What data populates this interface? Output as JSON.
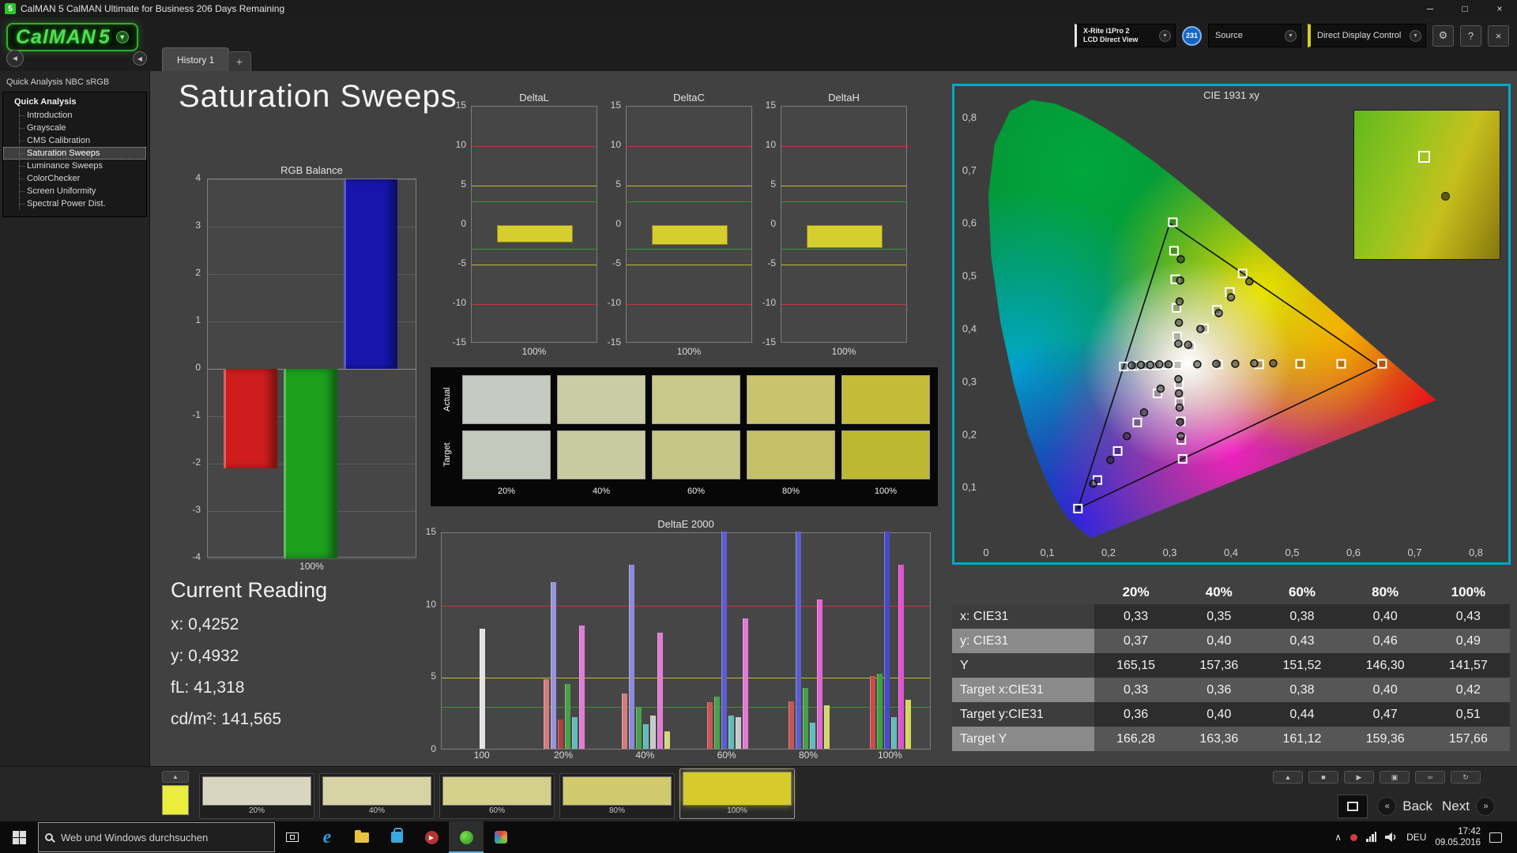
{
  "titlebar": {
    "icon": "5",
    "title": "CalMAN 5 CalMAN Ultimate for Business 206 Days Remaining"
  },
  "logo": {
    "brand": "CalMAN",
    "version": "5"
  },
  "tabs": {
    "active": "History 1",
    "add": "+"
  },
  "topbar": {
    "meter_line1": "X-Rite i1Pro 2",
    "meter_line2": "LCD Direct View",
    "badge": "231",
    "source_label": "Source",
    "display_control_label": "Direct Display Control"
  },
  "sidebar": {
    "header": "Quick Analysis NBC sRGB",
    "root": "Quick Analysis",
    "items": [
      "Introduction",
      "Grayscale",
      "CMS Calibration",
      "Saturation Sweeps",
      "Luminance Sweeps",
      "ColorChecker",
      "Screen Uniformity",
      "Spectral Power Dist."
    ],
    "selected_index": 3
  },
  "main": {
    "title": "Saturation Sweeps"
  },
  "rgb_balance": {
    "title": "RGB Balance",
    "yticks": [
      4,
      3,
      2,
      1,
      0,
      -1,
      -2,
      -3,
      -4
    ],
    "ymin": -4,
    "ymax": 4,
    "xlabel": "100%",
    "bars": [
      {
        "name": "red",
        "color": "#cf1d1d",
        "value": -2.1
      },
      {
        "name": "green",
        "color": "#1da11d",
        "value": -4
      },
      {
        "name": "blue",
        "color": "#1616ad",
        "value": 4
      }
    ]
  },
  "delta_charts": {
    "yticks": [
      15,
      10,
      5,
      0,
      -5,
      -10,
      -15
    ],
    "ymin": -15,
    "ymax": 15,
    "xlabel": "100%",
    "limits": {
      "red": 10,
      "yellow": 5,
      "green": 3
    },
    "charts": [
      {
        "title": "DeltaL",
        "value": -2.2
      },
      {
        "title": "DeltaC",
        "value": -2.5
      },
      {
        "title": "DeltaH",
        "value": -2.9
      }
    ]
  },
  "swatches": {
    "row_labels": [
      "Actual",
      "Target"
    ],
    "col_labels": [
      "20%",
      "40%",
      "60%",
      "80%",
      "100%"
    ],
    "actual": [
      "#c5cbc0",
      "#c9cda3",
      "#c9c98b",
      "#c8c46d",
      "#c2bc3a"
    ],
    "target": [
      "#c3c9bd",
      "#c7cb9f",
      "#c6c687",
      "#c4c068",
      "#bcb830"
    ]
  },
  "deltae": {
    "title": "DeltaE 2000",
    "yticks": [
      15,
      10,
      5,
      0
    ],
    "ymax": 15,
    "limits": {
      "red": 10,
      "yellow": 5,
      "green": 3
    },
    "categories": [
      "100",
      "20%",
      "40%",
      "60%",
      "80%",
      "100%"
    ],
    "groups": [
      [
        {
          "color": "#e3e3e3",
          "value": 8.3
        }
      ],
      [
        {
          "color": "#d47c7c",
          "value": 4.8
        },
        {
          "color": "#9894dc",
          "value": 11.5
        },
        {
          "color": "#b04040",
          "value": 2.0
        },
        {
          "color": "#49a049",
          "value": 4.5
        },
        {
          "color": "#62bcbc",
          "value": 2.2
        },
        {
          "color": "#e07cd4",
          "value": 8.5
        }
      ],
      [
        {
          "color": "#d47c7c",
          "value": 3.8
        },
        {
          "color": "#8e8ada",
          "value": 12.7
        },
        {
          "color": "#49a049",
          "value": 2.9
        },
        {
          "color": "#62bcbc",
          "value": 1.7
        },
        {
          "color": "#c9c9c9",
          "value": 2.3
        },
        {
          "color": "#e07cd4",
          "value": 8.0
        },
        {
          "color": "#d6d67a",
          "value": 1.2
        }
      ],
      [
        {
          "color": "#c95555",
          "value": 3.2
        },
        {
          "color": "#49a049",
          "value": 3.6
        },
        {
          "color": "#5d5dd0",
          "value": 15
        },
        {
          "color": "#62bcbc",
          "value": 2.3
        },
        {
          "color": "#c9c9c9",
          "value": 2.2
        },
        {
          "color": "#e07cd4",
          "value": 9.0
        }
      ],
      [
        {
          "color": "#c95555",
          "value": 3.3
        },
        {
          "color": "#5d5dd0",
          "value": 15
        },
        {
          "color": "#49a049",
          "value": 4.2
        },
        {
          "color": "#62bcbc",
          "value": 1.8
        },
        {
          "color": "#e066d4",
          "value": 10.3
        },
        {
          "color": "#d6d66a",
          "value": 3.0
        }
      ],
      [
        {
          "color": "#c94b4b",
          "value": 5.0
        },
        {
          "color": "#3da03d",
          "value": 5.2
        },
        {
          "color": "#4949c8",
          "value": 15
        },
        {
          "color": "#62bcbc",
          "value": 2.2
        },
        {
          "color": "#e052d0",
          "value": 12.7
        },
        {
          "color": "#d6d65a",
          "value": 3.4
        }
      ]
    ]
  },
  "cie": {
    "title": "CIE 1931 xy",
    "xtick_labels": [
      "0",
      "0,1",
      "0,2",
      "0,3",
      "0,4",
      "0,5",
      "0,6",
      "0,7",
      "0,8"
    ],
    "ytick_labels": [
      "0,1",
      "0,2",
      "0,3",
      "0,4",
      "0,5",
      "0,6",
      "0,7",
      "0,8"
    ],
    "triangle": [
      [
        0.64,
        0.33
      ],
      [
        0.3,
        0.6
      ],
      [
        0.15,
        0.06
      ]
    ],
    "targets": [
      [
        0.313,
        0.332
      ],
      [
        0.379,
        0.333
      ],
      [
        0.446,
        0.333
      ],
      [
        0.513,
        0.334
      ],
      [
        0.58,
        0.334
      ],
      [
        0.647,
        0.334
      ],
      [
        0.312,
        0.386
      ],
      [
        0.311,
        0.44
      ],
      [
        0.309,
        0.494
      ],
      [
        0.307,
        0.548
      ],
      [
        0.305,
        0.602
      ],
      [
        0.28,
        0.278
      ],
      [
        0.247,
        0.223
      ],
      [
        0.215,
        0.169
      ],
      [
        0.182,
        0.114
      ],
      [
        0.15,
        0.06
      ],
      [
        0.295,
        0.332
      ],
      [
        0.277,
        0.331
      ],
      [
        0.26,
        0.331
      ],
      [
        0.242,
        0.33
      ],
      [
        0.225,
        0.329
      ],
      [
        0.315,
        0.296
      ],
      [
        0.316,
        0.261
      ],
      [
        0.318,
        0.225
      ],
      [
        0.319,
        0.19
      ],
      [
        0.321,
        0.154
      ],
      [
        0.334,
        0.367
      ],
      [
        0.356,
        0.401
      ],
      [
        0.377,
        0.436
      ],
      [
        0.398,
        0.47
      ],
      [
        0.419,
        0.505
      ]
    ],
    "measurements": [
      [
        0.345,
        0.333
      ],
      [
        0.376,
        0.334
      ],
      [
        0.407,
        0.334
      ],
      [
        0.438,
        0.335
      ],
      [
        0.469,
        0.335
      ],
      [
        0.314,
        0.372
      ],
      [
        0.315,
        0.412
      ],
      [
        0.316,
        0.452
      ],
      [
        0.317,
        0.492
      ],
      [
        0.318,
        0.532
      ],
      [
        0.285,
        0.287
      ],
      [
        0.258,
        0.242
      ],
      [
        0.23,
        0.197
      ],
      [
        0.203,
        0.152
      ],
      [
        0.175,
        0.107
      ],
      [
        0.298,
        0.333
      ],
      [
        0.283,
        0.333
      ],
      [
        0.268,
        0.332
      ],
      [
        0.253,
        0.332
      ],
      [
        0.238,
        0.331
      ],
      [
        0.314,
        0.305
      ],
      [
        0.315,
        0.278
      ],
      [
        0.316,
        0.251
      ],
      [
        0.317,
        0.224
      ],
      [
        0.318,
        0.197
      ],
      [
        0.33,
        0.37
      ],
      [
        0.35,
        0.4
      ],
      [
        0.38,
        0.43
      ],
      [
        0.4,
        0.46
      ],
      [
        0.43,
        0.49
      ]
    ],
    "inset": {
      "square": [
        0.44,
        0.27
      ],
      "dot": [
        0.6,
        0.55
      ]
    }
  },
  "current_reading": {
    "title": "Current Reading",
    "lines": [
      "x: 0,4252",
      "y: 0,4932",
      "fL: 41,318",
      "cd/m²: 141,565"
    ]
  },
  "table": {
    "col_headers": [
      "20%",
      "40%",
      "60%",
      "80%",
      "100%"
    ],
    "rows": [
      {
        "label": "x: CIE31",
        "values": [
          "0,33",
          "0,35",
          "0,38",
          "0,40",
          "0,43"
        ]
      },
      {
        "label": "y: CIE31",
        "values": [
          "0,37",
          "0,40",
          "0,43",
          "0,46",
          "0,49"
        ]
      },
      {
        "label": "Y",
        "values": [
          "165,15",
          "157,36",
          "151,52",
          "146,30",
          "141,57"
        ]
      },
      {
        "label": "Target x:CIE31",
        "values": [
          "0,33",
          "0,36",
          "0,38",
          "0,40",
          "0,42"
        ]
      },
      {
        "label": "Target y:CIE31",
        "values": [
          "0,36",
          "0,40",
          "0,44",
          "0,47",
          "0,51"
        ]
      },
      {
        "label": "Target Y",
        "values": [
          "166,28",
          "163,36",
          "161,12",
          "159,36",
          "157,66"
        ]
      }
    ]
  },
  "bottom": {
    "mini_swatch_color": "#ecec3a",
    "swatches": [
      {
        "label": "20%",
        "color": "#d8d6bf"
      },
      {
        "label": "40%",
        "color": "#d6d3a5"
      },
      {
        "label": "60%",
        "color": "#d4cf8b"
      },
      {
        "label": "80%",
        "color": "#d1c96e"
      },
      {
        "label": "100%",
        "color": "#d6cb2b"
      }
    ],
    "active_index": 4,
    "back": "Back",
    "next": "Next"
  },
  "taskbar": {
    "search_placeholder": "Web und Windows durchsuchen",
    "lang": "DEU",
    "time": "17:42",
    "date": "09.05.2016"
  },
  "icons": {
    "dropdown": "▼",
    "gear": "⚙",
    "help": "?",
    "close": "×",
    "minimize": "─",
    "maximize": "□",
    "window_close": "×",
    "collapse": "◀",
    "back_circle": "◄",
    "eject": "▲",
    "stop": "■",
    "play": "▶",
    "camera": "▣",
    "loop": "∞",
    "refresh": "↻",
    "back_chev": "«",
    "next_chev": "»",
    "tray_chevron": "∧"
  }
}
